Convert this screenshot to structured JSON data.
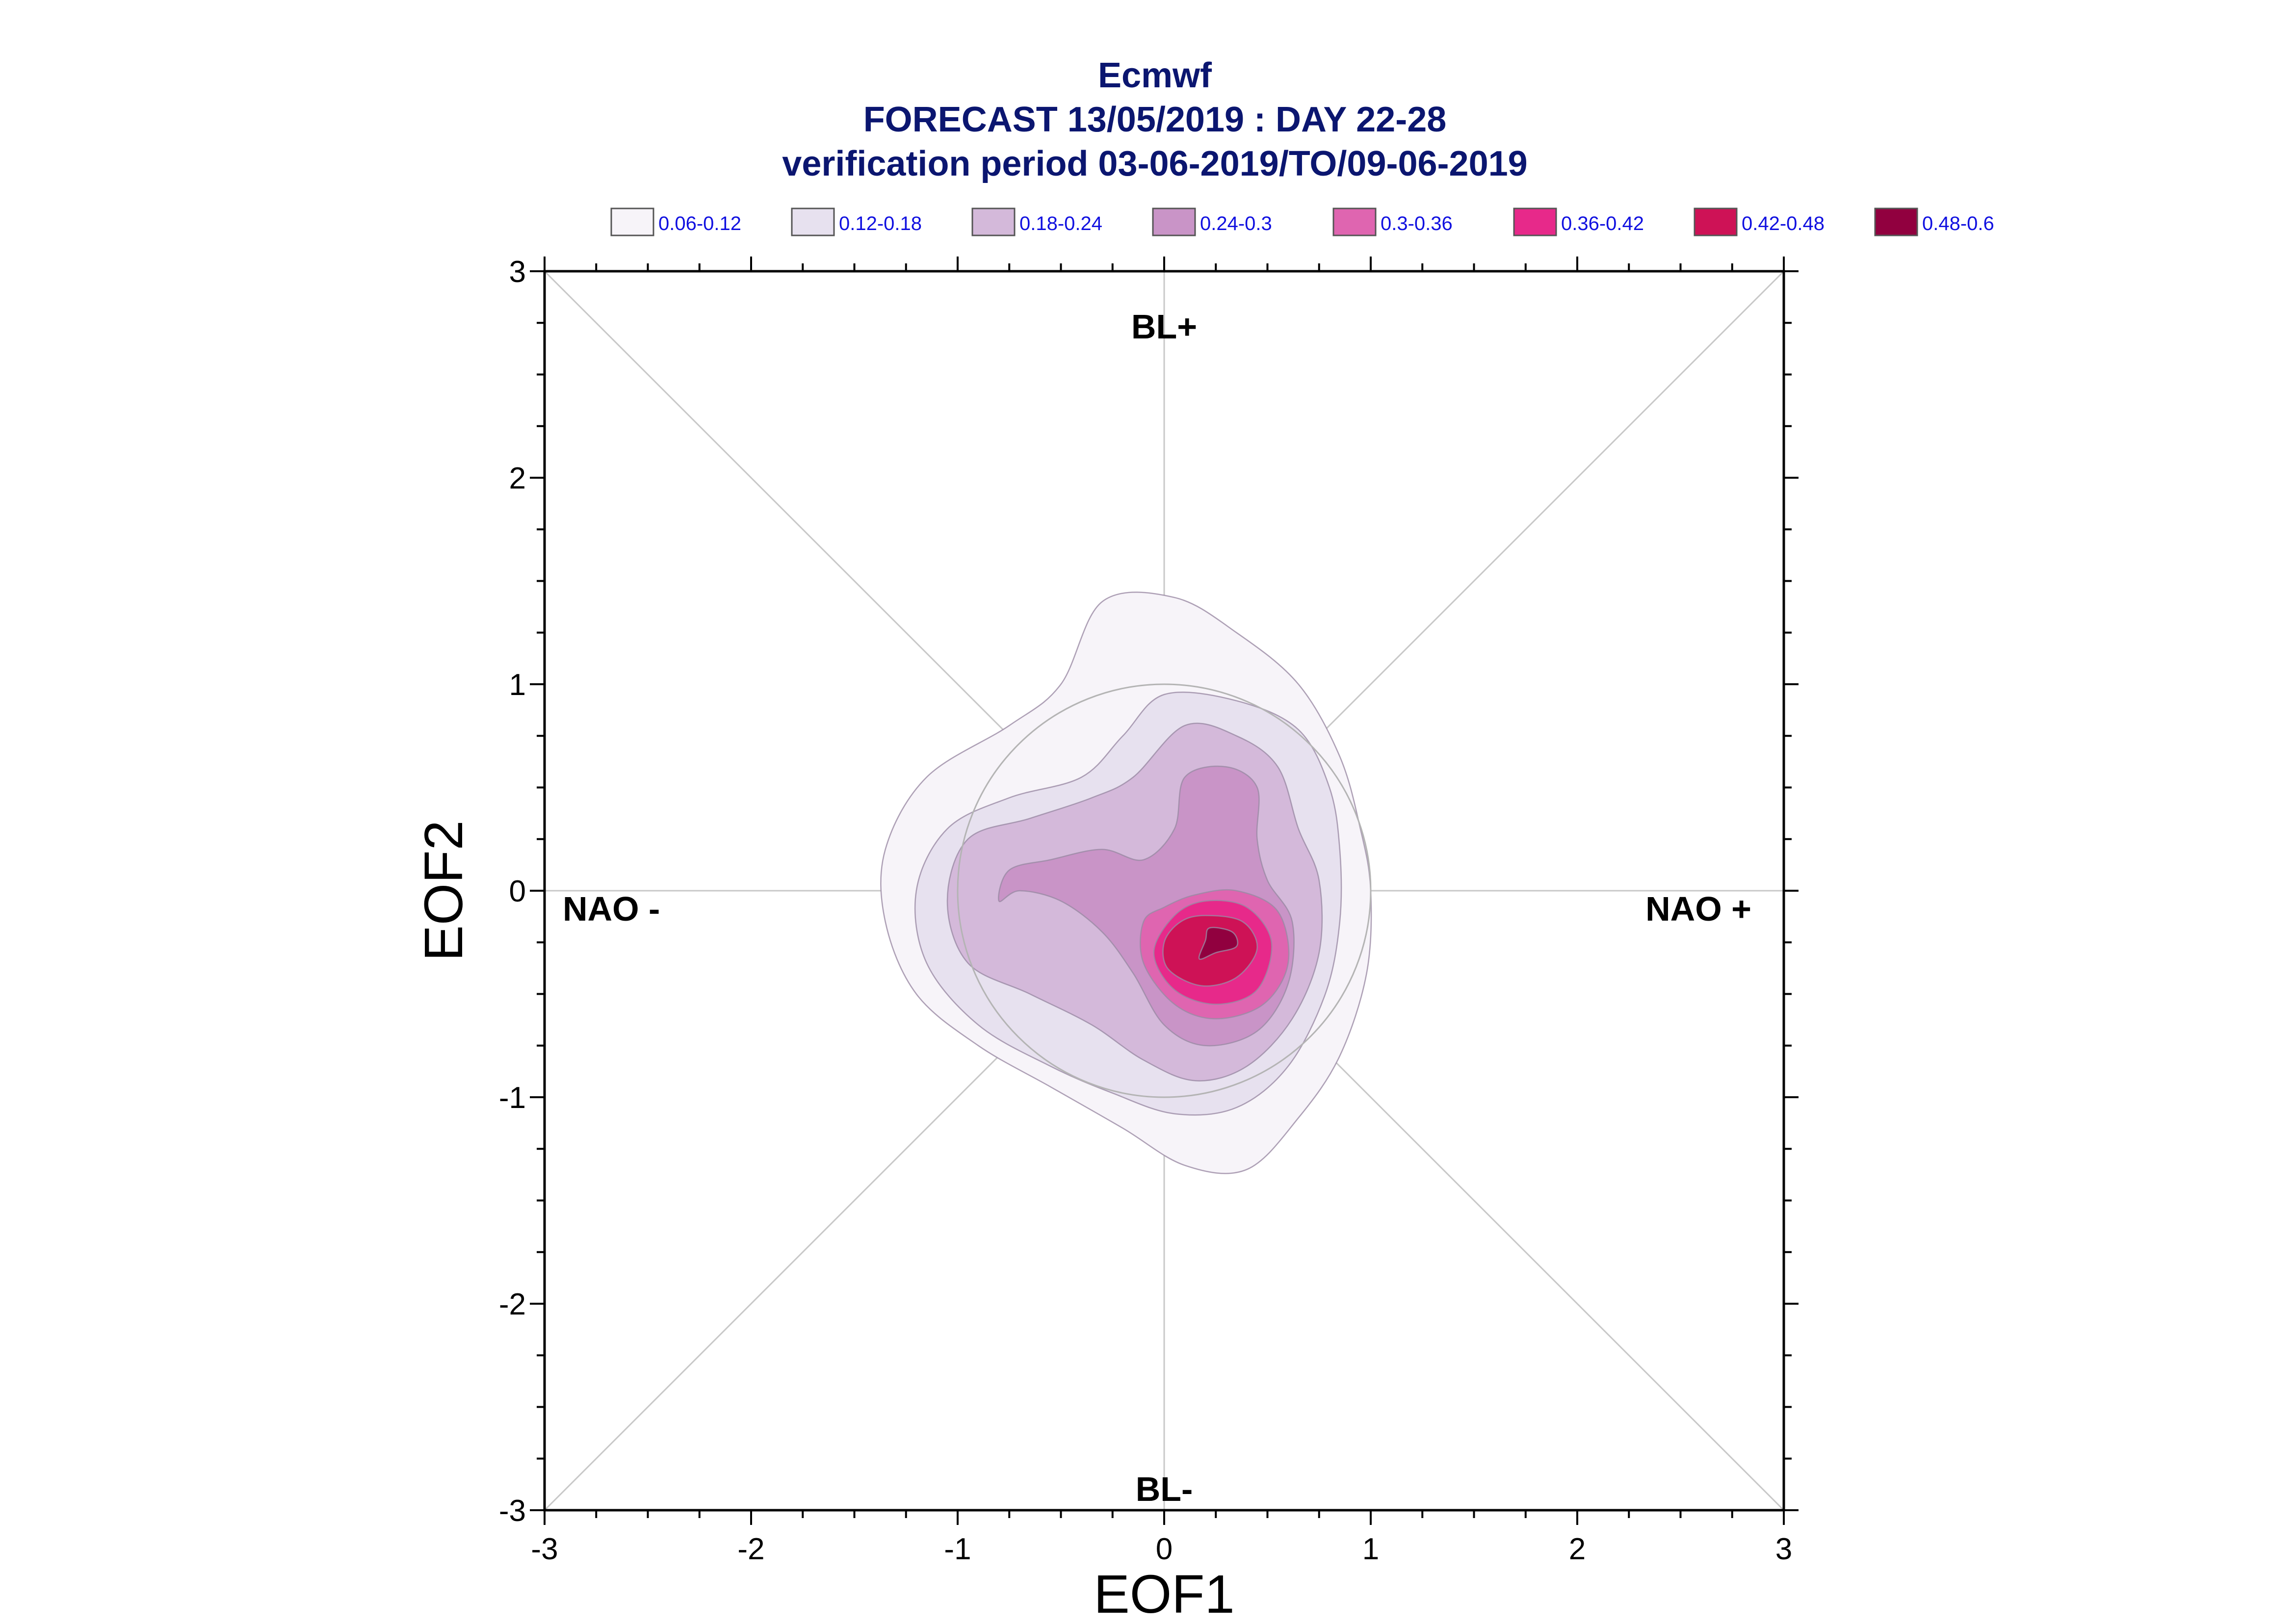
{
  "chart_data": {
    "type": "contour",
    "title": "Ecmwf",
    "subtitle_lines": [
      "FORECAST 13/05/2019 : DAY 22-28",
      "verification period 03-06-2019/TO/09-06-2019"
    ],
    "xlabel": "EOF1",
    "ylabel": "EOF2",
    "xlim": [
      -3,
      3
    ],
    "ylim": [
      -3,
      3
    ],
    "xticks": [
      -3,
      -2,
      -1,
      0,
      1,
      2,
      3
    ],
    "yticks": [
      -3,
      -2,
      -1,
      0,
      1,
      2,
      3
    ],
    "regime_labels": [
      {
        "text": "BL+",
        "direction": "top"
      },
      {
        "text": "BL-",
        "direction": "bottom"
      },
      {
        "text": "NAO -",
        "direction": "left"
      },
      {
        "text": "NAO +",
        "direction": "right"
      }
    ],
    "legend": [
      {
        "label": "0.06-0.12",
        "color": "#f7f4f9"
      },
      {
        "label": "0.12-0.18",
        "color": "#e7e1ef"
      },
      {
        "label": "0.18-0.24",
        "color": "#d4b9da"
      },
      {
        "label": "0.24-0.3",
        "color": "#c994c7"
      },
      {
        "label": "0.3-0.36",
        "color": "#df65b0"
      },
      {
        "label": "0.36-0.42",
        "color": "#e7298a"
      },
      {
        "label": "0.42-0.48",
        "color": "#ce1256"
      },
      {
        "label": "0.48-0.6",
        "color": "#91003f"
      }
    ],
    "density_levels": [
      {
        "range": "0.06-0.12",
        "color": "#f7f4f9",
        "outline": [
          [
            -0.3,
            1.4
          ],
          [
            0.05,
            1.42
          ],
          [
            0.35,
            1.25
          ],
          [
            0.65,
            1.0
          ],
          [
            0.85,
            0.65
          ],
          [
            0.95,
            0.3
          ],
          [
            1.0,
            0.0
          ],
          [
            0.98,
            -0.4
          ],
          [
            0.85,
            -0.8
          ],
          [
            0.65,
            -1.1
          ],
          [
            0.4,
            -1.35
          ],
          [
            0.1,
            -1.33
          ],
          [
            -0.2,
            -1.15
          ],
          [
            -0.55,
            -0.95
          ],
          [
            -0.9,
            -0.75
          ],
          [
            -1.2,
            -0.5
          ],
          [
            -1.35,
            -0.15
          ],
          [
            -1.35,
            0.2
          ],
          [
            -1.15,
            0.55
          ],
          [
            -0.75,
            0.8
          ],
          [
            -0.5,
            1.0
          ]
        ]
      },
      {
        "range": "0.12-0.18",
        "color": "#e7e1ef",
        "outline": [
          [
            0.0,
            0.95
          ],
          [
            0.35,
            0.92
          ],
          [
            0.65,
            0.78
          ],
          [
            0.8,
            0.5
          ],
          [
            0.85,
            0.2
          ],
          [
            0.85,
            -0.15
          ],
          [
            0.78,
            -0.5
          ],
          [
            0.6,
            -0.85
          ],
          [
            0.35,
            -1.05
          ],
          [
            0.05,
            -1.08
          ],
          [
            -0.25,
            -0.98
          ],
          [
            -0.55,
            -0.85
          ],
          [
            -0.9,
            -0.65
          ],
          [
            -1.15,
            -0.35
          ],
          [
            -1.2,
            0.0
          ],
          [
            -1.05,
            0.3
          ],
          [
            -0.75,
            0.45
          ],
          [
            -0.4,
            0.55
          ],
          [
            -0.2,
            0.75
          ]
        ]
      },
      {
        "range": "0.18-0.24",
        "color": "#d4b9da",
        "outline": [
          [
            0.1,
            0.8
          ],
          [
            0.35,
            0.75
          ],
          [
            0.55,
            0.6
          ],
          [
            0.65,
            0.3
          ],
          [
            0.75,
            0.05
          ],
          [
            0.75,
            -0.3
          ],
          [
            0.62,
            -0.62
          ],
          [
            0.4,
            -0.85
          ],
          [
            0.15,
            -0.92
          ],
          [
            -0.1,
            -0.82
          ],
          [
            -0.35,
            -0.65
          ],
          [
            -0.65,
            -0.5
          ],
          [
            -0.95,
            -0.35
          ],
          [
            -1.05,
            -0.05
          ],
          [
            -0.95,
            0.25
          ],
          [
            -0.65,
            0.35
          ],
          [
            -0.35,
            0.45
          ],
          [
            -0.15,
            0.55
          ]
        ]
      },
      {
        "range": "0.24-0.3",
        "color": "#c994c7",
        "outline": [
          [
            0.1,
            0.55
          ],
          [
            0.3,
            0.6
          ],
          [
            0.45,
            0.5
          ],
          [
            0.45,
            0.25
          ],
          [
            0.5,
            0.05
          ],
          [
            0.62,
            -0.15
          ],
          [
            0.6,
            -0.45
          ],
          [
            0.45,
            -0.68
          ],
          [
            0.2,
            -0.75
          ],
          [
            0.0,
            -0.65
          ],
          [
            -0.15,
            -0.4
          ],
          [
            -0.3,
            -0.2
          ],
          [
            -0.5,
            -0.05
          ],
          [
            -0.7,
            0.0
          ],
          [
            -0.8,
            -0.05
          ],
          [
            -0.75,
            0.1
          ],
          [
            -0.55,
            0.15
          ],
          [
            -0.3,
            0.2
          ],
          [
            -0.1,
            0.15
          ],
          [
            0.05,
            0.3
          ]
        ]
      },
      {
        "range": "0.3-0.36",
        "color": "#df65b0",
        "outline": [
          [
            0.15,
            -0.02
          ],
          [
            0.35,
            0.0
          ],
          [
            0.55,
            -0.1
          ],
          [
            0.6,
            -0.35
          ],
          [
            0.48,
            -0.55
          ],
          [
            0.25,
            -0.62
          ],
          [
            0.05,
            -0.55
          ],
          [
            -0.1,
            -0.35
          ],
          [
            -0.1,
            -0.15
          ],
          [
            0.0,
            -0.08
          ]
        ]
      },
      {
        "range": "0.36-0.42",
        "color": "#e7298a",
        "outline": [
          [
            0.2,
            -0.05
          ],
          [
            0.4,
            -0.08
          ],
          [
            0.52,
            -0.25
          ],
          [
            0.45,
            -0.48
          ],
          [
            0.25,
            -0.55
          ],
          [
            0.05,
            -0.48
          ],
          [
            -0.05,
            -0.3
          ],
          [
            0.05,
            -0.12
          ]
        ]
      },
      {
        "range": "0.42-0.48",
        "color": "#ce1256",
        "outline": [
          [
            0.2,
            -0.12
          ],
          [
            0.38,
            -0.15
          ],
          [
            0.45,
            -0.28
          ],
          [
            0.35,
            -0.42
          ],
          [
            0.18,
            -0.46
          ],
          [
            0.02,
            -0.38
          ],
          [
            0.0,
            -0.25
          ],
          [
            0.08,
            -0.15
          ]
        ]
      },
      {
        "range": "0.48-0.6",
        "color": "#91003f",
        "outline": [
          [
            0.22,
            -0.18
          ],
          [
            0.33,
            -0.2
          ],
          [
            0.35,
            -0.27
          ],
          [
            0.25,
            -0.3
          ],
          [
            0.17,
            -0.33
          ],
          [
            0.2,
            -0.24
          ]
        ]
      }
    ],
    "reference_circle_radius": 1.0,
    "diagonal_guides": true
  }
}
